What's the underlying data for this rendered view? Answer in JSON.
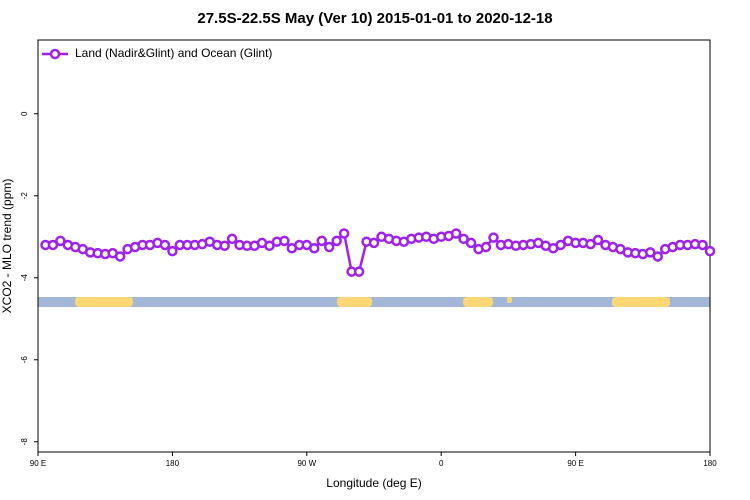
{
  "chart_data": {
    "type": "line",
    "title": "27.5S-22.5S May (Ver 10)   2015-01-01 to 2020-12-18",
    "x_label": "Longitude (deg E)",
    "y_label": "XCO2 - MLO trend (ppm)",
    "xlim": [
      90,
      540
    ],
    "xticks": [
      {
        "value": 90,
        "label": "90 E"
      },
      {
        "value": 180,
        "label": "180"
      },
      {
        "value": 270,
        "label": "90 W"
      },
      {
        "value": 360,
        "label": "0"
      },
      {
        "value": 450,
        "label": "90 E"
      },
      {
        "value": 540,
        "label": "180"
      }
    ],
    "ylim": [
      -8.25,
      1.8
    ],
    "yticks": [
      0,
      -2,
      -4,
      -6,
      -8
    ],
    "legend": "top-left",
    "x": [
      95,
      100,
      105,
      110,
      115,
      120,
      125,
      130,
      135,
      140,
      145,
      150,
      155,
      160,
      165,
      170,
      175,
      180,
      185,
      190,
      195,
      200,
      205,
      210,
      215,
      220,
      225,
      230,
      235,
      240,
      245,
      250,
      255,
      260,
      265,
      270,
      275,
      280,
      285,
      290,
      295,
      300,
      305,
      310,
      315,
      320,
      325,
      330,
      335,
      340,
      345,
      350,
      355,
      360,
      365,
      370,
      375,
      380,
      385,
      390,
      395,
      400,
      405,
      410,
      415,
      420,
      425,
      430,
      435,
      440,
      445,
      450,
      455,
      460,
      465,
      470,
      475,
      480,
      485,
      490,
      495,
      500,
      505,
      510,
      515,
      520,
      525,
      530,
      535,
      540
    ],
    "series": [
      {
        "name": "Land (Nadir&Glint) and Ocean (Glint)",
        "color": "#a020f0",
        "values": [
          -3.2,
          -3.2,
          -3.1,
          -3.2,
          -3.25,
          -3.3,
          -3.38,
          -3.4,
          -3.42,
          -3.4,
          -3.48,
          -3.3,
          -3.25,
          -3.2,
          -3.2,
          -3.15,
          -3.2,
          -3.35,
          -3.2,
          -3.2,
          -3.2,
          -3.18,
          -3.12,
          -3.2,
          -3.22,
          -3.05,
          -3.2,
          -3.22,
          -3.22,
          -3.15,
          -3.22,
          -3.12,
          -3.1,
          -3.28,
          -3.2,
          -3.2,
          -3.28,
          -3.1,
          -3.25,
          -3.1,
          -2.92,
          -3.85,
          -3.85,
          -3.12,
          -3.15,
          -3.0,
          -3.05,
          -3.1,
          -3.12,
          -3.05,
          -3.02,
          -3.0,
          -3.05,
          -3.0,
          -2.98,
          -2.92,
          -3.05,
          -3.15,
          -3.3,
          -3.25,
          -3.02,
          -3.2,
          -3.18,
          -3.22,
          -3.2,
          -3.18,
          -3.15,
          -3.22,
          -3.28,
          -3.2,
          -3.1,
          -3.15,
          -3.15,
          -3.18,
          -3.08,
          -3.2,
          -3.25,
          -3.3,
          -3.38,
          -3.4,
          -3.42,
          -3.38,
          -3.48,
          -3.3,
          -3.25,
          -3.2,
          -3.2,
          -3.18,
          -3.2,
          -3.35
        ]
      }
    ]
  }
}
